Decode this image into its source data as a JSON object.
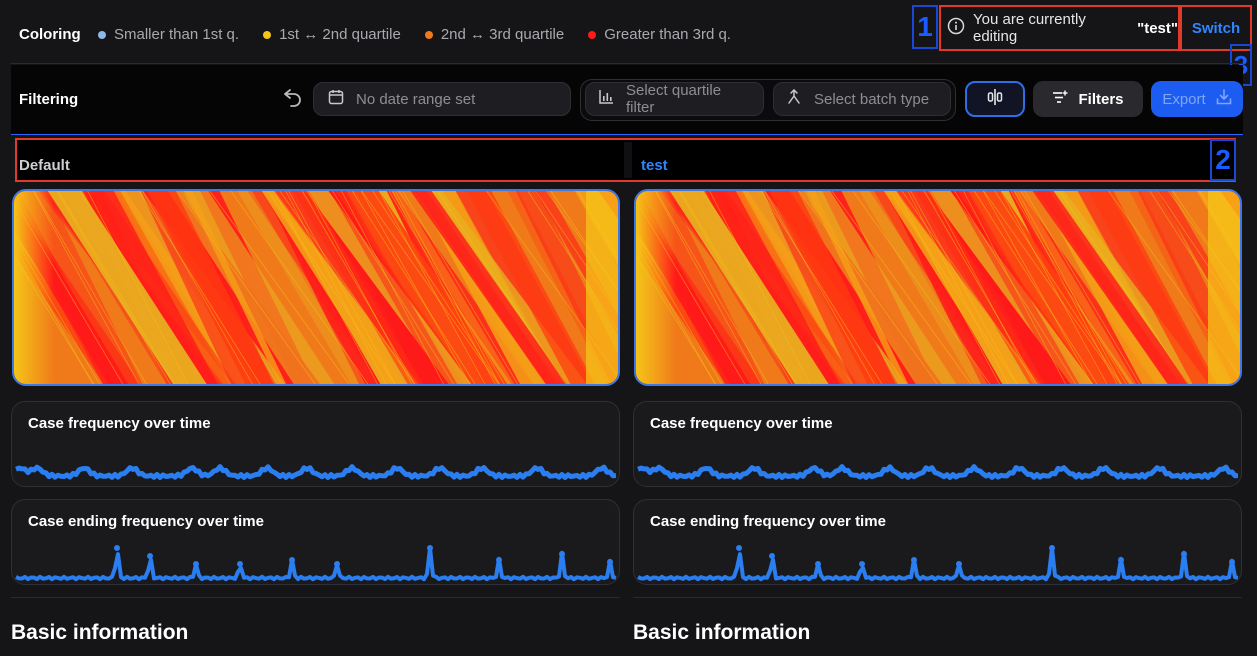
{
  "coloring": {
    "title": "Coloring",
    "legend": [
      {
        "label": "Smaller than 1st q.",
        "color": "#8fb7e8"
      },
      {
        "label": "1st ↔ 2nd quartile",
        "color": "#f5c518"
      },
      {
        "label": "2nd ↔ 3rd quartile",
        "color": "#f07a1a"
      },
      {
        "label": "Greater than 3rd q.",
        "color": "#ff1a1a"
      }
    ]
  },
  "callouts": {
    "one": "1",
    "two": "2",
    "three": "3"
  },
  "editing": {
    "prefix": "You are currently editing",
    "name": "\"test\"",
    "switch_label": "Switch"
  },
  "filtering": {
    "title": "Filtering",
    "date_placeholder": "No date range set",
    "quartile_placeholder": "Select quartile filter",
    "batch_placeholder": "Select batch type",
    "filters_label": "Filters",
    "export_label": "Export"
  },
  "tabs": [
    {
      "label": "Default",
      "color": "#cfcfd3"
    },
    {
      "label": "test",
      "color": "#2f86ff"
    }
  ],
  "cards": {
    "case_frequency": "Case frequency over time",
    "case_ending": "Case ending frequency over time"
  },
  "sections": {
    "basic_info": "Basic information"
  },
  "colors": {
    "accent": "#2f6fe6",
    "line": "#2a7ef0",
    "callout": "#1a47d6",
    "highlight": "#e23a2a"
  }
}
